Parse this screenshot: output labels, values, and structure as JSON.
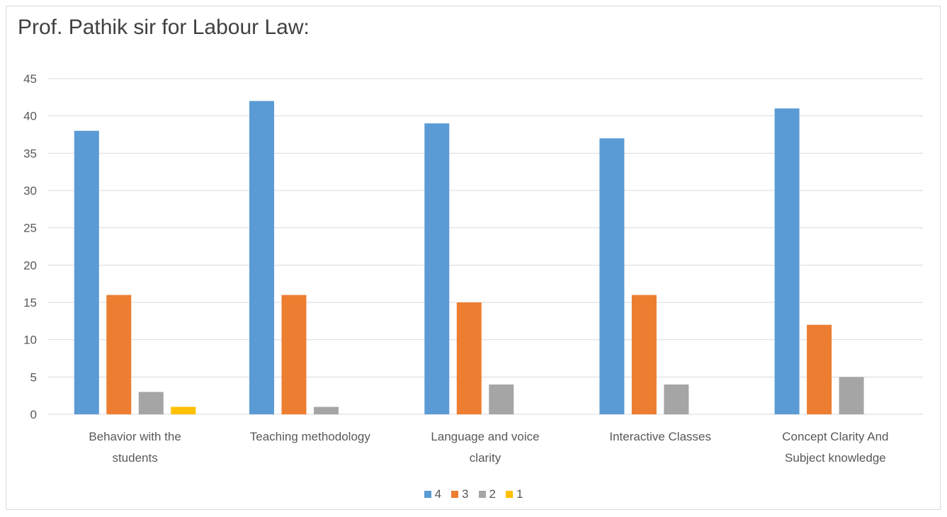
{
  "chart_data": {
    "type": "bar",
    "title": "Prof. Pathik sir for Labour Law:",
    "categories": [
      [
        "Behavior with the",
        "students"
      ],
      [
        "Teaching methodology"
      ],
      [
        "Language and voice",
        "clarity"
      ],
      [
        "Interactive Classes"
      ],
      [
        "Concept Clarity And",
        "Subject knowledge"
      ]
    ],
    "series": [
      {
        "name": "4",
        "color": "#5b9bd5",
        "values": [
          38,
          42,
          39,
          37,
          41
        ]
      },
      {
        "name": "3",
        "color": "#ed7d31",
        "values": [
          16,
          16,
          15,
          16,
          12
        ]
      },
      {
        "name": "2",
        "color": "#a5a5a5",
        "values": [
          3,
          1,
          4,
          4,
          5
        ]
      },
      {
        "name": "1",
        "color": "#ffc000",
        "values": [
          1,
          0,
          0,
          0,
          0
        ]
      }
    ],
    "ylim": [
      0,
      45
    ],
    "yticks": [
      0,
      5,
      10,
      15,
      20,
      25,
      30,
      35,
      40,
      45
    ],
    "grid": true,
    "legend_position": "bottom"
  }
}
